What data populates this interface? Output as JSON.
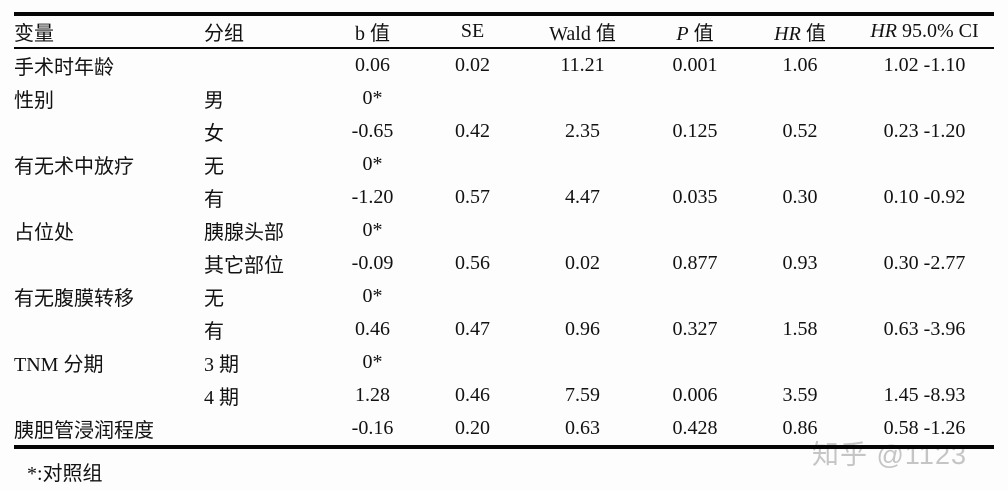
{
  "table": {
    "column_keys": [
      "variable",
      "group",
      "b",
      "se",
      "wald",
      "p",
      "hr",
      "ci"
    ],
    "headers": [
      {
        "italic": "",
        "text": "变量"
      },
      {
        "italic": "",
        "text": "分组"
      },
      {
        "italic": "",
        "text": "b 值"
      },
      {
        "italic": "",
        "text": "SE"
      },
      {
        "italic": "",
        "text": "Wald 值"
      },
      {
        "italic": "P",
        "text": " 值"
      },
      {
        "italic": "HR",
        "text": " 值"
      },
      {
        "italic": "HR",
        "text": " 95.0% CI"
      }
    ],
    "rows": [
      {
        "variable": "手术时年龄",
        "group": "",
        "b": "0.06",
        "se": "0.02",
        "wald": "11.21",
        "p": "0.001",
        "hr": "1.06",
        "ci": "1.02 -1.10"
      },
      {
        "variable": "性别",
        "group": "男",
        "b": "0*",
        "se": "",
        "wald": "",
        "p": "",
        "hr": "",
        "ci": ""
      },
      {
        "variable": "",
        "group": "女",
        "b": "-0.65",
        "se": "0.42",
        "wald": "2.35",
        "p": "0.125",
        "hr": "0.52",
        "ci": "0.23 -1.20"
      },
      {
        "variable": "有无术中放疗",
        "group": "无",
        "b": "0*",
        "se": "",
        "wald": "",
        "p": "",
        "hr": "",
        "ci": ""
      },
      {
        "variable": "",
        "group": "有",
        "b": "-1.20",
        "se": "0.57",
        "wald": "4.47",
        "p": "0.035",
        "hr": "0.30",
        "ci": "0.10 -0.92"
      },
      {
        "variable": "占位处",
        "group": "胰腺头部",
        "b": "0*",
        "se": "",
        "wald": "",
        "p": "",
        "hr": "",
        "ci": ""
      },
      {
        "variable": "",
        "group": "其它部位",
        "b": "-0.09",
        "se": "0.56",
        "wald": "0.02",
        "p": "0.877",
        "hr": "0.93",
        "ci": "0.30 -2.77"
      },
      {
        "variable": "有无腹膜转移",
        "group": "无",
        "b": "0*",
        "se": "",
        "wald": "",
        "p": "",
        "hr": "",
        "ci": ""
      },
      {
        "variable": "",
        "group": "有",
        "b": "0.46",
        "se": "0.47",
        "wald": "0.96",
        "p": "0.327",
        "hr": "1.58",
        "ci": "0.63 -3.96"
      },
      {
        "variable": "TNM 分期",
        "group": "3 期",
        "b": "0*",
        "se": "",
        "wald": "",
        "p": "",
        "hr": "",
        "ci": ""
      },
      {
        "variable": "",
        "group": "4 期",
        "b": "1.28",
        "se": "0.46",
        "wald": "7.59",
        "p": "0.006",
        "hr": "3.59",
        "ci": "1.45 -8.93"
      },
      {
        "variable": "胰胆管浸润程度",
        "group": "",
        "b": "-0.16",
        "se": "0.20",
        "wald": "0.63",
        "p": "0.428",
        "hr": "0.86",
        "ci": "0.58 -1.26"
      }
    ]
  },
  "footnote": "*:对照组",
  "watermark": "知乎 @1123",
  "colors": {
    "background": "#fdfdfd",
    "text": "#121212",
    "rule": "#060606",
    "watermark": "#c5c5c5"
  }
}
